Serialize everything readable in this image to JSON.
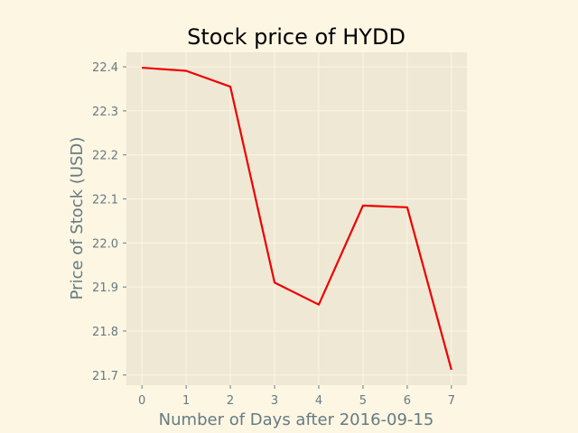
{
  "chart_data": {
    "type": "line",
    "title": "Stock price of HYDD",
    "xlabel": "Number of Days after 2016-09-15",
    "ylabel": "Price of Stock (USD)",
    "x": [
      0,
      1,
      2,
      3,
      4,
      5,
      6,
      7
    ],
    "series": [
      {
        "values": [
          22.398,
          22.391,
          22.355,
          21.91,
          21.86,
          22.085,
          22.081,
          21.712
        ],
        "color": "#ee0000"
      }
    ],
    "xlim": [
      -0.35,
      7.35
    ],
    "ylim": [
      21.677,
      22.433
    ],
    "xticks": [
      0,
      1,
      2,
      3,
      4,
      5,
      6,
      7
    ],
    "yticks": [
      21.7,
      21.8,
      21.9,
      22.0,
      22.1,
      22.2,
      22.3,
      22.4
    ],
    "ytick_labels": [
      "21.7",
      "21.8",
      "21.9",
      "22.0",
      "22.1",
      "22.2",
      "22.3",
      "22.4"
    ],
    "grid": true,
    "colors": {
      "background": "#fdf6e3",
      "plot_background": "#eee8d5",
      "grid": "#fdf6e3",
      "text": "#657b83",
      "title": "#000000"
    }
  }
}
